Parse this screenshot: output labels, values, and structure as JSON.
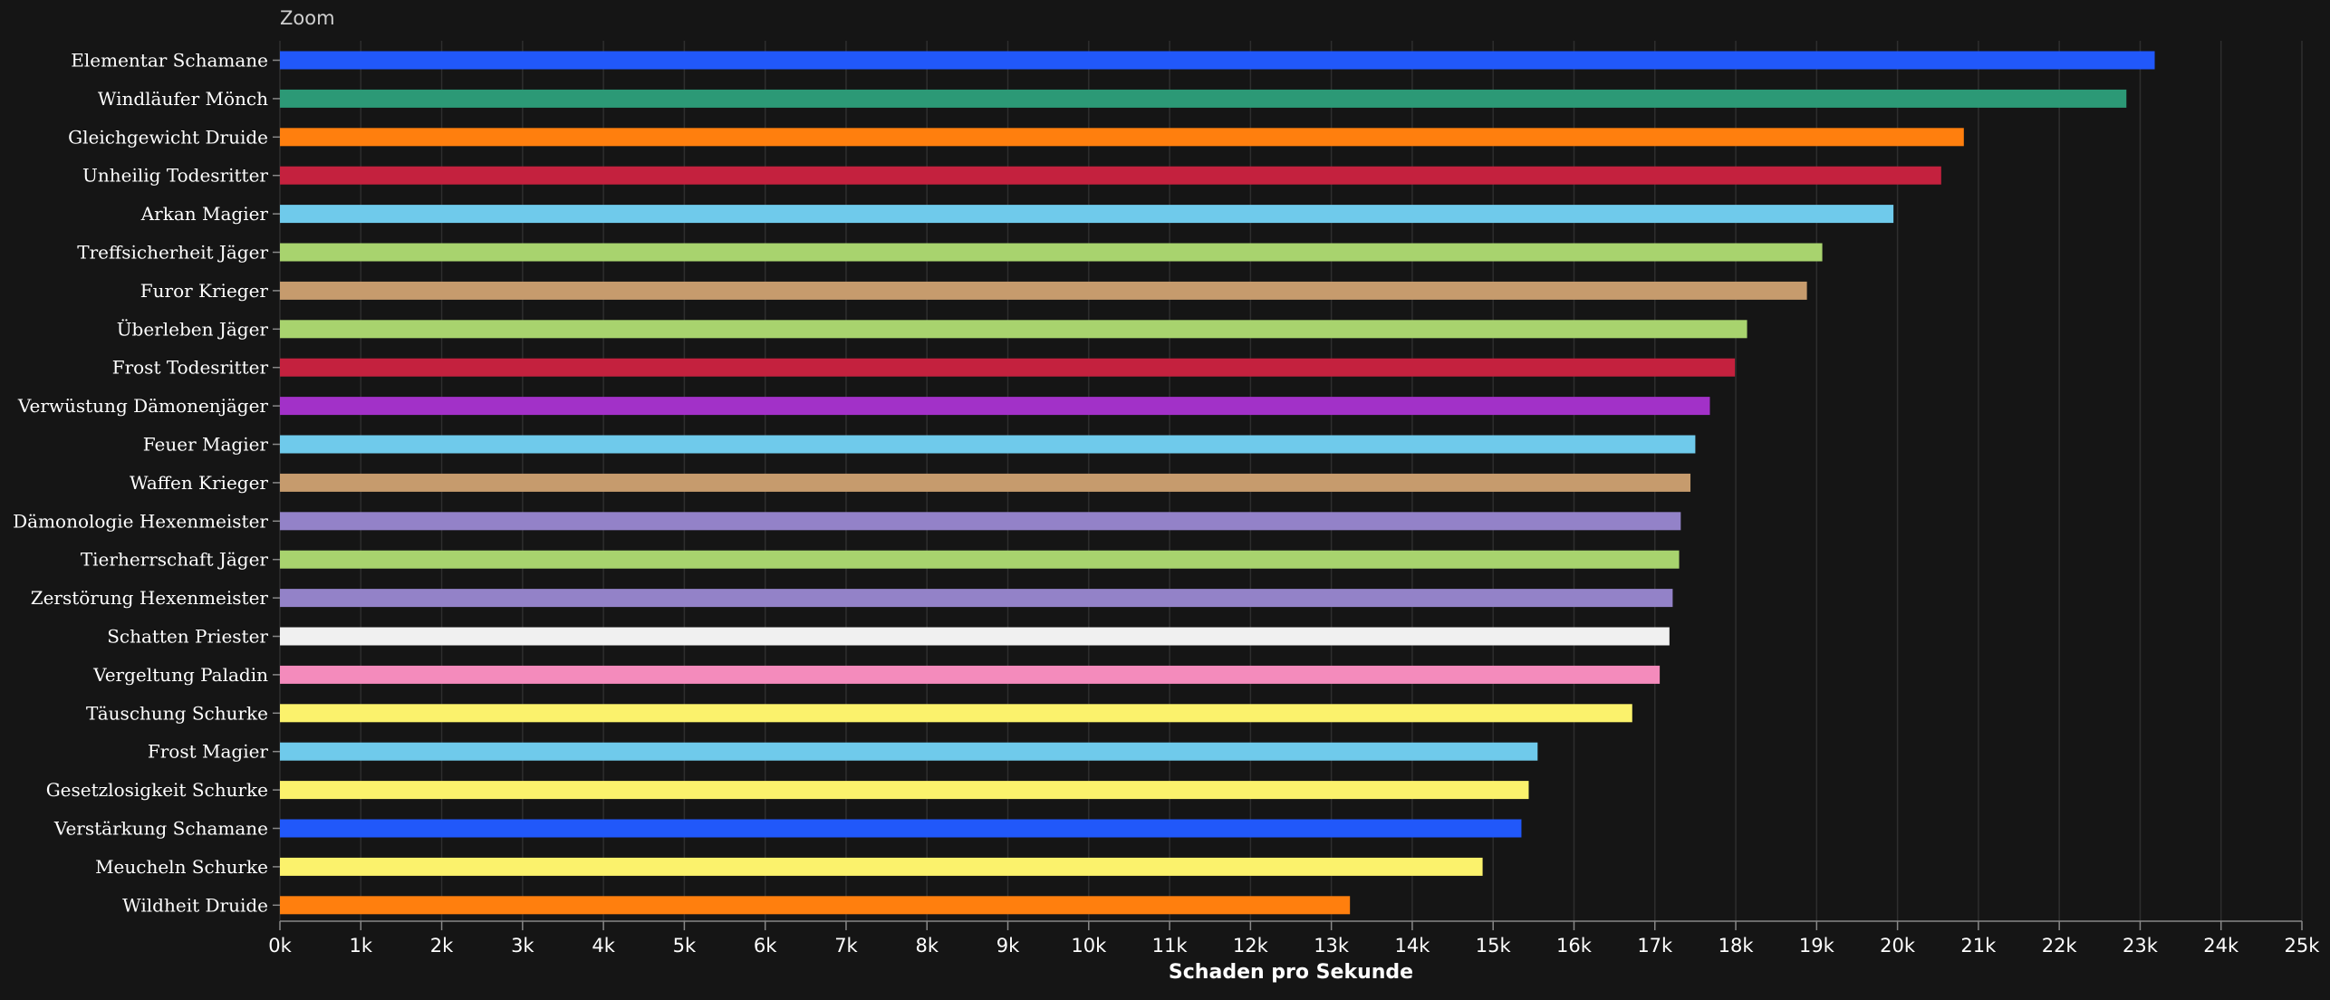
{
  "zoom_label": "Zoom",
  "chart_data": {
    "type": "bar",
    "orientation": "horizontal",
    "xlabel": "Schaden pro Sekunde",
    "ylabel": "",
    "xlim": [
      0,
      25000
    ],
    "xticks": [
      0,
      1000,
      2000,
      3000,
      4000,
      5000,
      6000,
      7000,
      8000,
      9000,
      10000,
      11000,
      12000,
      13000,
      14000,
      15000,
      16000,
      17000,
      18000,
      19000,
      20000,
      21000,
      22000,
      23000,
      24000,
      25000
    ],
    "xtick_labels": [
      "0k",
      "1k",
      "2k",
      "3k",
      "4k",
      "5k",
      "6k",
      "7k",
      "8k",
      "9k",
      "10k",
      "11k",
      "12k",
      "13k",
      "14k",
      "15k",
      "16k",
      "17k",
      "18k",
      "19k",
      "20k",
      "21k",
      "22k",
      "23k",
      "24k",
      "25k"
    ],
    "grid": true,
    "background": "#151515",
    "gridcolor": "#2e2e2e",
    "textcolor": "#ffffff",
    "categories": [
      "Elementar Schamane",
      "Windläufer Mönch",
      "Gleichgewicht Druide",
      "Unheilig Todesritter",
      "Arkan Magier",
      "Treffsicherheit Jäger",
      "Furor Krieger",
      "Überleben Jäger",
      "Frost Todesritter",
      "Verwüstung Dämonenjäger",
      "Feuer Magier",
      "Waffen Krieger",
      "Dämonologie Hexenmeister",
      "Tierherrschaft Jäger",
      "Zerstörung Hexenmeister",
      "Schatten Priester",
      "Vergeltung Paladin",
      "Täuschung Schurke",
      "Frost Magier",
      "Gesetzlosigkeit Schurke",
      "Verstärkung Schamane",
      "Meucheln Schurke",
      "Wildheit Druide"
    ],
    "values": [
      23180,
      22830,
      20820,
      20540,
      19950,
      19070,
      18880,
      18140,
      17990,
      17680,
      17500,
      17440,
      17320,
      17300,
      17220,
      17180,
      17060,
      16720,
      15550,
      15440,
      15350,
      14870,
      13230
    ],
    "colors": [
      "#2158fa",
      "#2c9976",
      "#ff7f0e",
      "#c4213e",
      "#6fcaeb",
      "#a8d36e",
      "#c69b6d",
      "#a8d36e",
      "#c4213e",
      "#a231c8",
      "#6fcaeb",
      "#c69b6d",
      "#9382c8",
      "#a8d36e",
      "#9382c8",
      "#f0f0f0",
      "#f48bbc",
      "#fbf26c",
      "#6fcaeb",
      "#fbf26c",
      "#2158fa",
      "#fbf26c",
      "#ff7f0e"
    ]
  }
}
